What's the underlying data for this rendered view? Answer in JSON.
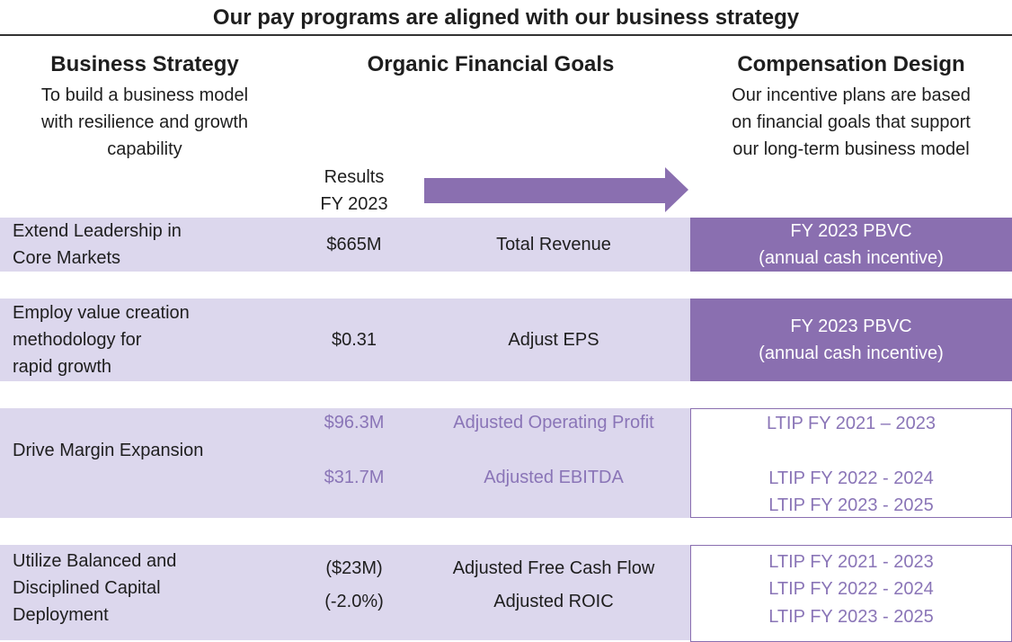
{
  "title": "Our pay programs are aligned with our business strategy",
  "columns": {
    "strategy": {
      "heading": "Business Strategy",
      "sub": [
        "To build a business model",
        "with resilience and growth",
        "capability"
      ]
    },
    "goals": {
      "heading": "Organic Financial Goals",
      "results_label": [
        "Results",
        "FY 2023"
      ]
    },
    "comp": {
      "heading": "Compensation Design",
      "sub": [
        "Our incentive plans are based",
        "on financial goals that support",
        "our long-term business model"
      ]
    }
  },
  "rows": [
    {
      "strategy": [
        "Extend Leadership in",
        "Core Markets"
      ],
      "results": [
        "$665M"
      ],
      "goals": [
        "Total Revenue"
      ],
      "comp": [
        "FY 2023 PBVC",
        "(annual cash incentive)"
      ]
    },
    {
      "strategy": [
        "Employ value creation",
        "methodology for",
        "rapid growth"
      ],
      "results": [
        "$0.31"
      ],
      "goals": [
        "Adjust EPS"
      ],
      "comp": [
        "FY 2023 PBVC",
        "(annual cash incentive)"
      ]
    },
    {
      "strategy": [
        "Drive Margin Expansion"
      ],
      "results": [
        "$96.3M",
        "$31.7M"
      ],
      "goals": [
        "Adjusted Operating Profit",
        "Adjusted EBITDA"
      ],
      "comp": [
        "LTIP FY 2021 – 2023",
        "LTIP FY 2022 - 2024",
        "LTIP FY 2023 - 2025"
      ]
    },
    {
      "strategy": [
        "Utilize Balanced and",
        "Disciplined Capital",
        "Deployment"
      ],
      "results": [
        "($23M)",
        "(-2.0%)"
      ],
      "goals": [
        "Adjusted Free Cash Flow",
        "Adjusted ROIC"
      ],
      "comp": [
        "LTIP FY 2021 - 2023",
        "LTIP FY 2022 - 2024",
        "LTIP FY 2023 - 2025"
      ]
    }
  ]
}
